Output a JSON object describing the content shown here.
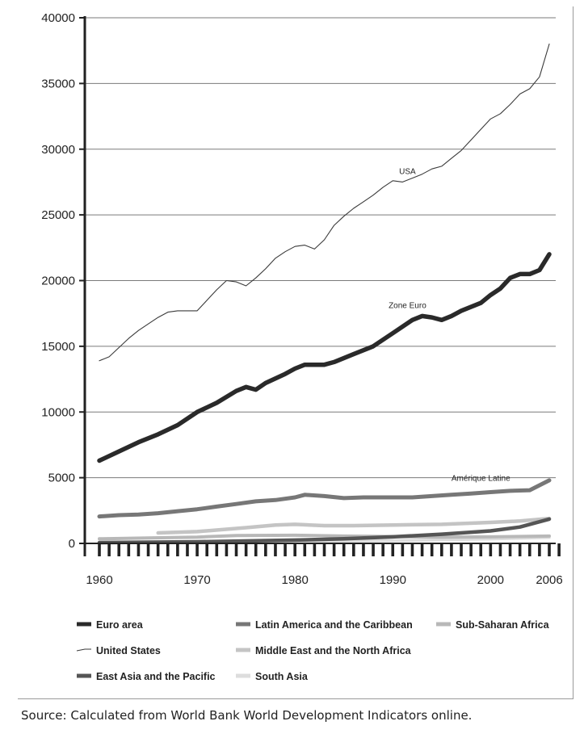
{
  "chart_data": {
    "type": "line",
    "title": "",
    "xlabel": "",
    "ylabel": "",
    "ylim": [
      0,
      40000
    ],
    "xlim": [
      1960,
      2006
    ],
    "y_ticks": [
      0,
      5000,
      10000,
      15000,
      20000,
      25000,
      30000,
      35000,
      40000
    ],
    "y_tick_labels": [
      "0",
      "5000",
      "10000",
      "15000",
      "20000",
      "25000",
      "30000",
      "35000",
      "40000"
    ],
    "x_tick_labels": [
      {
        "value": 1960,
        "label": "1960"
      },
      {
        "value": 1970,
        "label": "1970"
      },
      {
        "value": 1980,
        "label": "1980"
      },
      {
        "value": 1990,
        "label": "1990"
      },
      {
        "value": 2000,
        "label": "2000"
      },
      {
        "value": 2006,
        "label": "2006"
      }
    ],
    "grid": true,
    "legend_position": "bottom",
    "colors": {
      "euro": "#2a2a2a",
      "us": "#3a3a3a",
      "latin": "#777777",
      "eastasia": "#555555",
      "mena": "#c4c4c4",
      "ssa": "#b8b8b8",
      "southasia": "#dddddd",
      "grid": "#7a7a7a",
      "axis": "#222222"
    },
    "series": [
      {
        "key": "euro",
        "name": "Euro area",
        "x": [
          1960,
          1962,
          1964,
          1966,
          1968,
          1970,
          1972,
          1974,
          1975,
          1976,
          1977,
          1979,
          1980,
          1981,
          1982,
          1983,
          1984,
          1986,
          1988,
          1990,
          1992,
          1993,
          1994,
          1995,
          1996,
          1997,
          1998,
          1999,
          2000,
          2001,
          2002,
          2003,
          2004,
          2005,
          2006
        ],
        "y": [
          6300,
          7000,
          7700,
          8300,
          9000,
          10000,
          10700,
          11600,
          11900,
          11700,
          12200,
          12900,
          13300,
          13600,
          13600,
          13600,
          13800,
          14400,
          15000,
          16000,
          17000,
          17300,
          17200,
          17000,
          17300,
          17700,
          18000,
          18300,
          18900,
          19400,
          20200,
          20500,
          20500,
          20800,
          22000
        ]
      },
      {
        "key": "us",
        "name": "United States",
        "x": [
          1960,
          1961,
          1962,
          1963,
          1964,
          1965,
          1966,
          1967,
          1968,
          1969,
          1970,
          1971,
          1972,
          1973,
          1974,
          1975,
          1976,
          1977,
          1978,
          1979,
          1980,
          1981,
          1982,
          1983,
          1984,
          1985,
          1986,
          1987,
          1988,
          1989,
          1990,
          1991,
          1992,
          1993,
          1994,
          1995,
          1996,
          1997,
          1998,
          1999,
          2000,
          2001,
          2002,
          2003,
          2004,
          2005,
          2006
        ],
        "y": [
          13900,
          14200,
          14900,
          15600,
          16200,
          16700,
          17200,
          17600,
          17700,
          17700,
          17700,
          18500,
          19300,
          20000,
          19900,
          19600,
          20200,
          20900,
          21700,
          22200,
          22600,
          22700,
          22400,
          23100,
          24200,
          24900,
          25500,
          26000,
          26500,
          27100,
          27600,
          27500,
          27800,
          28100,
          28500,
          28700,
          29300,
          29900,
          30700,
          31500,
          32300,
          32700,
          33400,
          34200,
          34600,
          35500,
          38000
        ]
      },
      {
        "key": "latin",
        "name": "Latin America and the Caribbean",
        "x": [
          1960,
          1962,
          1964,
          1966,
          1968,
          1970,
          1972,
          1974,
          1976,
          1978,
          1980,
          1981,
          1983,
          1985,
          1987,
          1990,
          1992,
          1994,
          1996,
          1998,
          2000,
          2002,
          2004,
          2006
        ],
        "y": [
          2050,
          2150,
          2200,
          2300,
          2450,
          2600,
          2800,
          3000,
          3200,
          3300,
          3500,
          3700,
          3600,
          3450,
          3500,
          3500,
          3500,
          3600,
          3700,
          3800,
          3900,
          4000,
          4050,
          4800
        ]
      },
      {
        "key": "eastasia",
        "name": "East Asia and the Pacific",
        "x": [
          1960,
          1970,
          1980,
          1985,
          1990,
          1995,
          2000,
          2003,
          2006
        ],
        "y": [
          60,
          120,
          250,
          350,
          500,
          700,
          950,
          1250,
          1850
        ]
      },
      {
        "key": "mena",
        "name": "Middle East and the North Africa",
        "x": [
          1966,
          1970,
          1975,
          1978,
          1980,
          1983,
          1986,
          1990,
          1995,
          2000,
          2003,
          2006
        ],
        "y": [
          800,
          900,
          1200,
          1400,
          1450,
          1350,
          1350,
          1400,
          1450,
          1600,
          1700,
          1900
        ]
      },
      {
        "key": "ssa",
        "name": "Sub-Saharan Africa",
        "x": [
          1960,
          1965,
          1970,
          1974,
          1980,
          1985,
          1990,
          1995,
          2000,
          2006
        ],
        "y": [
          350,
          420,
          480,
          600,
          620,
          560,
          520,
          480,
          500,
          560
        ]
      },
      {
        "key": "southasia",
        "name": "South Asia",
        "x": [
          1960,
          1970,
          1980,
          1990,
          2000,
          2006
        ],
        "y": [
          80,
          110,
          140,
          210,
          330,
          450
        ]
      }
    ],
    "annotations": [
      {
        "text": "USA",
        "x": 1991.5,
        "y": 28100
      },
      {
        "text": "Zone Euro",
        "x": 1991.5,
        "y": 17900
      },
      {
        "text": "Amérique Latine",
        "x": 1999,
        "y": 4750
      }
    ],
    "legend": [
      {
        "key": "euro",
        "label": "Euro area",
        "style": "thick"
      },
      {
        "key": "latin",
        "label": "Latin America and the Caribbean",
        "style": "thick"
      },
      {
        "key": "ssa",
        "label": "Sub-Saharan Africa",
        "style": "thick"
      },
      {
        "key": "us",
        "label": "United States",
        "style": "thin"
      },
      {
        "key": "mena",
        "label": "Middle East and the North Africa",
        "style": "thick"
      },
      {
        "key": "eastasia",
        "label": "East Asia and the Pacific",
        "style": "thick"
      },
      {
        "key": "southasia",
        "label": "South Asia",
        "style": "thick"
      }
    ],
    "source": "Source: Calculated from World Bank World Development Indicators online."
  }
}
